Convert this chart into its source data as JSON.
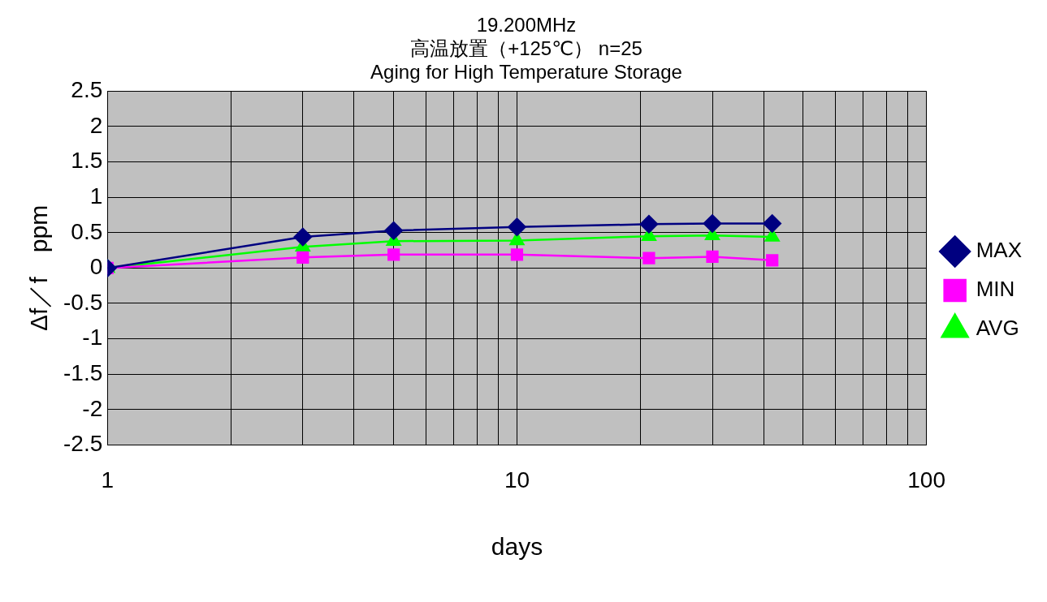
{
  "chart_data": {
    "type": "line",
    "title": [
      "19.200MHz",
      "高温放置（+125℃） n=25",
      "Aging for High Temperature Storage"
    ],
    "xlabel": "days",
    "ylabel": "Δf／f　ppm",
    "log": "x",
    "x": [
      1,
      3,
      5,
      10,
      21,
      30,
      42
    ],
    "series": [
      {
        "name": "MAX",
        "color": "#000080",
        "marker": "diamond",
        "values": [
          0,
          0.44,
          0.53,
          0.58,
          0.62,
          0.63,
          0.63
        ]
      },
      {
        "name": "MIN",
        "color": "#ff00ff",
        "marker": "square",
        "values": [
          0,
          0.15,
          0.19,
          0.19,
          0.14,
          0.16,
          0.11
        ]
      },
      {
        "name": "AVG",
        "color": "#00ff00",
        "marker": "triangle",
        "values": [
          0,
          0.3,
          0.38,
          0.39,
          0.45,
          0.46,
          0.44
        ]
      }
    ],
    "xlim": [
      1,
      100
    ],
    "xticks": [
      1,
      {
        "value": 2,
        "label": null
      },
      {
        "value": 3,
        "label": null
      },
      {
        "value": 4,
        "label": null
      },
      {
        "value": 5,
        "label": null
      },
      {
        "value": 6,
        "label": null
      },
      {
        "value": 7,
        "label": null
      },
      {
        "value": 8,
        "label": null
      },
      {
        "value": 9,
        "label": null
      },
      10,
      {
        "value": 20,
        "label": null
      },
      {
        "value": 30,
        "label": null
      },
      {
        "value": 40,
        "label": null
      },
      {
        "value": 50,
        "label": null
      },
      {
        "value": 60,
        "label": null
      },
      {
        "value": 70,
        "label": null
      },
      {
        "value": 80,
        "label": null
      },
      {
        "value": 90,
        "label": null
      },
      100
    ],
    "ylim": [
      -2.5,
      2.5
    ],
    "yticks": [
      -2.5,
      -2,
      -1.5,
      -1,
      -0.5,
      0,
      0.5,
      1,
      1.5,
      2,
      2.5
    ],
    "grid": true,
    "legend": "right"
  }
}
